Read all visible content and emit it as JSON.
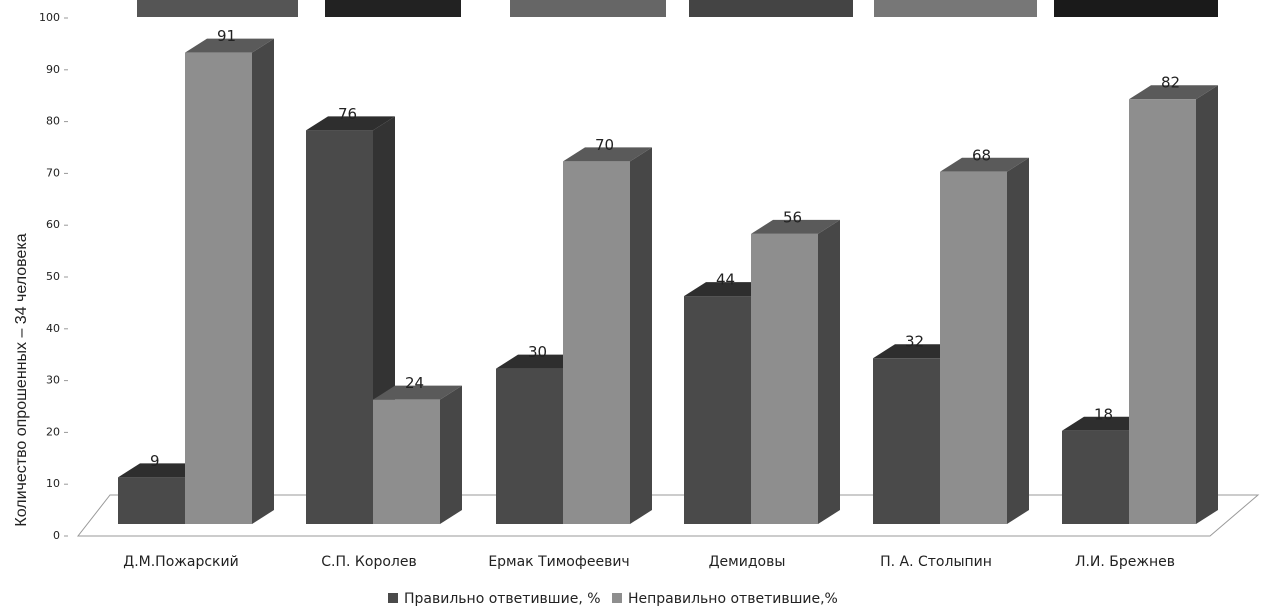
{
  "chart_data": {
    "type": "bar3d",
    "y_label": "Количество опрошенных – 34 человека",
    "categories": [
      "Д.М.Пожарский",
      "С.П. Королев",
      "Ермак Тимофеевич",
      "Демидовы",
      "П. А. Столыпин",
      "Л.И. Брежнев"
    ],
    "series": [
      {
        "name": "Правильно ответившие, %",
        "color": "#4a4a4a",
        "values": [
          9,
          76,
          30,
          44,
          32,
          18
        ]
      },
      {
        "name": "Неправильно ответившие,%",
        "color": "#8e8e8e",
        "values": [
          91,
          24,
          70,
          56,
          68,
          82
        ]
      }
    ],
    "ylim": [
      0,
      100
    ],
    "yticks": [
      0,
      10,
      20,
      30,
      40,
      50,
      60,
      70,
      80,
      90,
      100
    ]
  }
}
